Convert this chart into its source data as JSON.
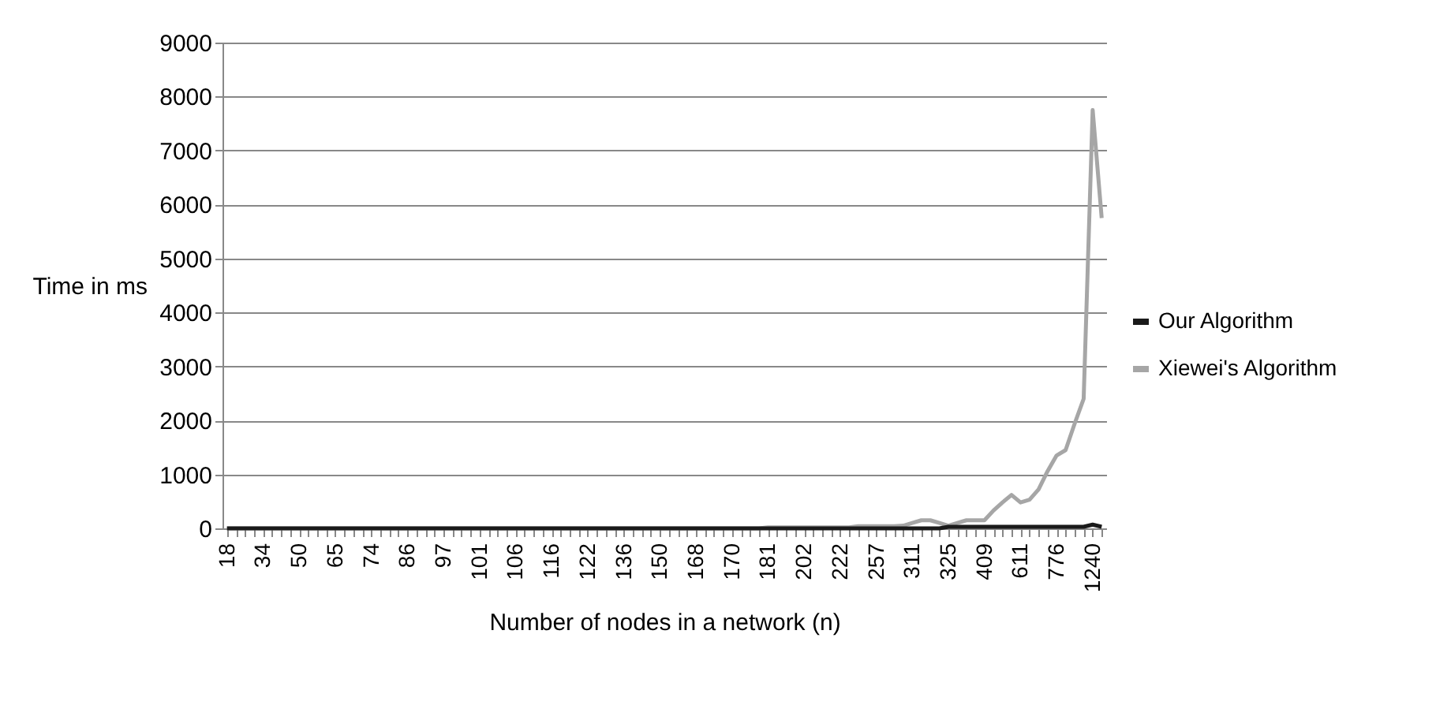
{
  "chart_data": {
    "type": "line",
    "xlabel": "Number of nodes in a network (n)",
    "ylabel": "Time in ms",
    "categories": [
      "18",
      null,
      null,
      null,
      "34",
      null,
      null,
      null,
      "50",
      null,
      null,
      null,
      "65",
      null,
      null,
      null,
      "74",
      null,
      null,
      null,
      "86",
      null,
      null,
      null,
      "97",
      null,
      null,
      null,
      "101",
      null,
      null,
      null,
      "106",
      null,
      null,
      null,
      "116",
      null,
      null,
      null,
      "122",
      null,
      null,
      null,
      "136",
      null,
      null,
      null,
      "150",
      null,
      null,
      null,
      "168",
      null,
      null,
      null,
      "170",
      null,
      null,
      null,
      "181",
      null,
      null,
      null,
      "202",
      null,
      null,
      null,
      "222",
      null,
      null,
      null,
      "257",
      null,
      null,
      null,
      "311",
      null,
      null,
      null,
      "325",
      null,
      null,
      null,
      "409",
      null,
      null,
      null,
      "611",
      null,
      null,
      null,
      "776",
      null,
      null,
      null,
      "1240",
      null
    ],
    "series": [
      {
        "name": "Our Algorithm",
        "color": "#1a1a1a",
        "values": [
          0,
          0,
          0,
          0,
          0,
          0,
          0,
          0,
          0,
          0,
          0,
          0,
          0,
          0,
          0,
          0,
          0,
          0,
          0,
          0,
          0,
          0,
          0,
          0,
          0,
          0,
          0,
          0,
          0,
          0,
          0,
          0,
          0,
          0,
          0,
          0,
          0,
          0,
          0,
          0,
          0,
          0,
          0,
          0,
          0,
          0,
          0,
          0,
          0,
          0,
          0,
          0,
          0,
          0,
          0,
          0,
          0,
          0,
          0,
          0,
          0,
          0,
          0,
          0,
          0,
          0,
          0,
          0,
          0,
          0,
          0,
          0,
          0,
          0,
          0,
          0,
          0,
          0,
          0,
          0,
          30,
          30,
          30,
          30,
          30,
          30,
          30,
          30,
          30,
          30,
          30,
          30,
          30,
          30,
          30,
          30,
          70,
          30
        ]
      },
      {
        "name": "Xiewei's Algorithm",
        "color": "#a6a6a6",
        "values": [
          0,
          0,
          0,
          0,
          0,
          0,
          0,
          0,
          0,
          0,
          0,
          0,
          0,
          0,
          0,
          0,
          0,
          0,
          0,
          0,
          0,
          0,
          0,
          0,
          0,
          0,
          0,
          0,
          0,
          0,
          0,
          0,
          0,
          0,
          0,
          0,
          0,
          0,
          0,
          0,
          0,
          0,
          0,
          0,
          0,
          0,
          0,
          0,
          0,
          0,
          0,
          0,
          0,
          0,
          0,
          0,
          0,
          0,
          0,
          0,
          20,
          20,
          20,
          20,
          20,
          20,
          20,
          20,
          20,
          20,
          40,
          40,
          40,
          40,
          40,
          50,
          100,
          150,
          150,
          100,
          50,
          100,
          150,
          150,
          150,
          330,
          480,
          620,
          480,
          530,
          720,
          1060,
          1350,
          1450,
          1940,
          2400,
          7750,
          5750
        ]
      }
    ],
    "ylim": [
      0,
      9000
    ],
    "yticks": [
      0,
      1000,
      2000,
      3000,
      4000,
      5000,
      6000,
      7000,
      8000,
      9000
    ],
    "grid": "y",
    "legend": "right",
    "marker": "none",
    "line_style": "solid"
  }
}
